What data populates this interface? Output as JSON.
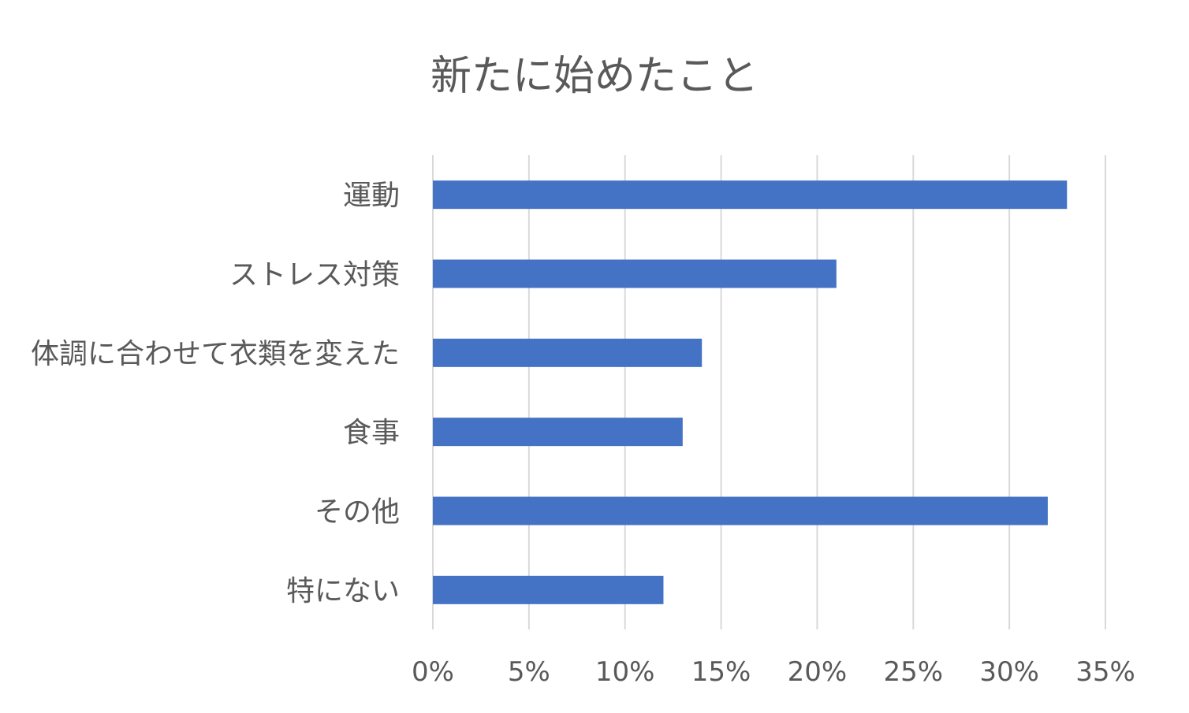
{
  "chart_data": {
    "type": "bar",
    "orientation": "horizontal",
    "title": "新たに始めたこと",
    "categories": [
      "運動",
      "ストレス対策",
      "体調に合わせて衣類を変えた",
      "食事",
      "その他",
      "特にない"
    ],
    "values": [
      0.33,
      0.21,
      0.14,
      0.13,
      0.32,
      0.12
    ],
    "xlim": [
      0,
      0.35
    ],
    "x_ticks": [
      0,
      0.05,
      0.1,
      0.15,
      0.2,
      0.25,
      0.3,
      0.35
    ],
    "x_tick_labels": [
      "0%",
      "5%",
      "10%",
      "15%",
      "20%",
      "25%",
      "30%",
      "35%"
    ],
    "grid": true,
    "legend": "none",
    "bar_color": "#4472c4",
    "grid_color": "#d9d9d9",
    "text_color": "#595959"
  }
}
